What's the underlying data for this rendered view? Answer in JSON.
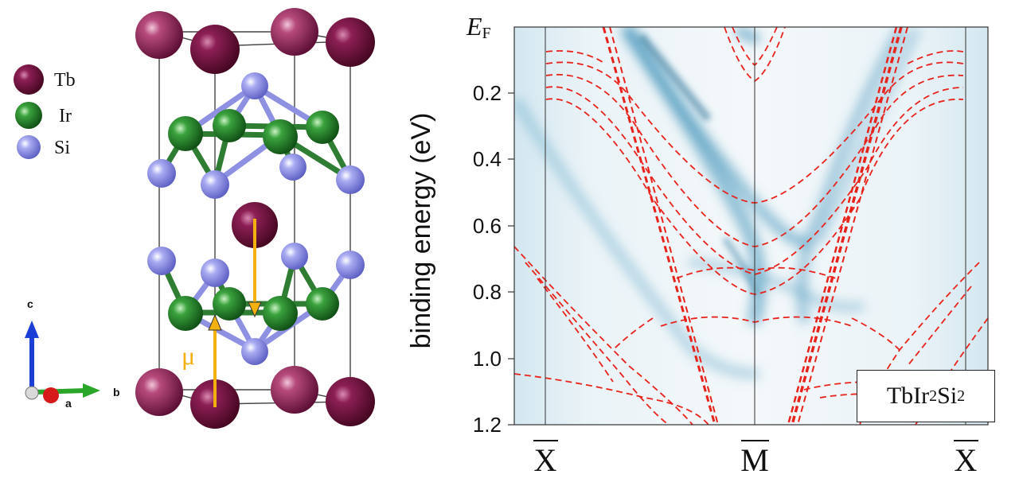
{
  "legend": {
    "items": [
      {
        "label": "Tb",
        "color": "#7d1a4b"
      },
      {
        "label": "Ir",
        "color": "#1f8a2a"
      },
      {
        "label": "Si",
        "color": "#8f92ea"
      }
    ]
  },
  "crystal": {
    "moment_label": "μ",
    "axes": {
      "c": "c",
      "a": "a",
      "b": "b"
    }
  },
  "band_plot": {
    "ylabel": "binding energy (eV)",
    "ef_label": "E",
    "ef_sub": "F",
    "y_ticks": [
      "0.2",
      "0.4",
      "0.6",
      "0.8",
      "1.0",
      "1.2"
    ],
    "k_points": [
      "X",
      "M",
      "X"
    ],
    "formula": {
      "el1": "TbIr",
      "n1": "2",
      "el2": "Si",
      "n2": "2"
    },
    "colors": {
      "calc": "#e8231c",
      "arpes": "#2f7fa6"
    }
  }
}
